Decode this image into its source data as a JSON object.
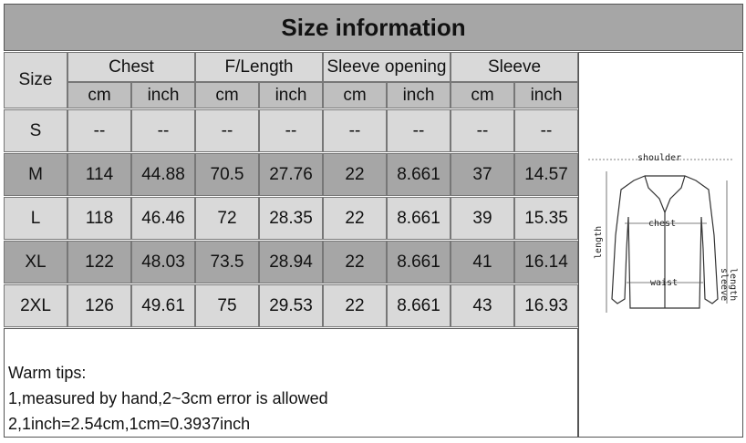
{
  "title": "Size information",
  "table": {
    "size_header": "Size",
    "groups": [
      "Chest",
      "F/Length",
      "Sleeve opening",
      "Sleeve"
    ],
    "units": [
      "cm",
      "inch",
      "cm",
      "inch",
      "cm",
      "inch",
      "cm",
      "inch"
    ],
    "rows": [
      [
        "S",
        "--",
        "--",
        "--",
        "--",
        "--",
        "--",
        "--",
        "--"
      ],
      [
        "M",
        "114",
        "44.88",
        "70.5",
        "27.76",
        "22",
        "8.661",
        "37",
        "14.57"
      ],
      [
        "L",
        "118",
        "46.46",
        "72",
        "28.35",
        "22",
        "8.661",
        "39",
        "15.35"
      ],
      [
        "XL",
        "122",
        "48.03",
        "73.5",
        "28.94",
        "22",
        "8.661",
        "41",
        "16.14"
      ],
      [
        "2XL",
        "126",
        "49.61",
        "75",
        "29.53",
        "22",
        "8.661",
        "43",
        "16.93"
      ]
    ]
  },
  "notes": {
    "title": "Warm tips:",
    "lines": [
      "1,measured by hand,2~3cm error is allowed",
      "2,1inch=2.54cm,1cm=0.3937inch"
    ]
  },
  "diagram": {
    "shoulder": "shoulder",
    "chest": "chest",
    "waist": "waist",
    "length": "length",
    "sleeve": "sleeve",
    "sleeve_length": "length"
  }
}
